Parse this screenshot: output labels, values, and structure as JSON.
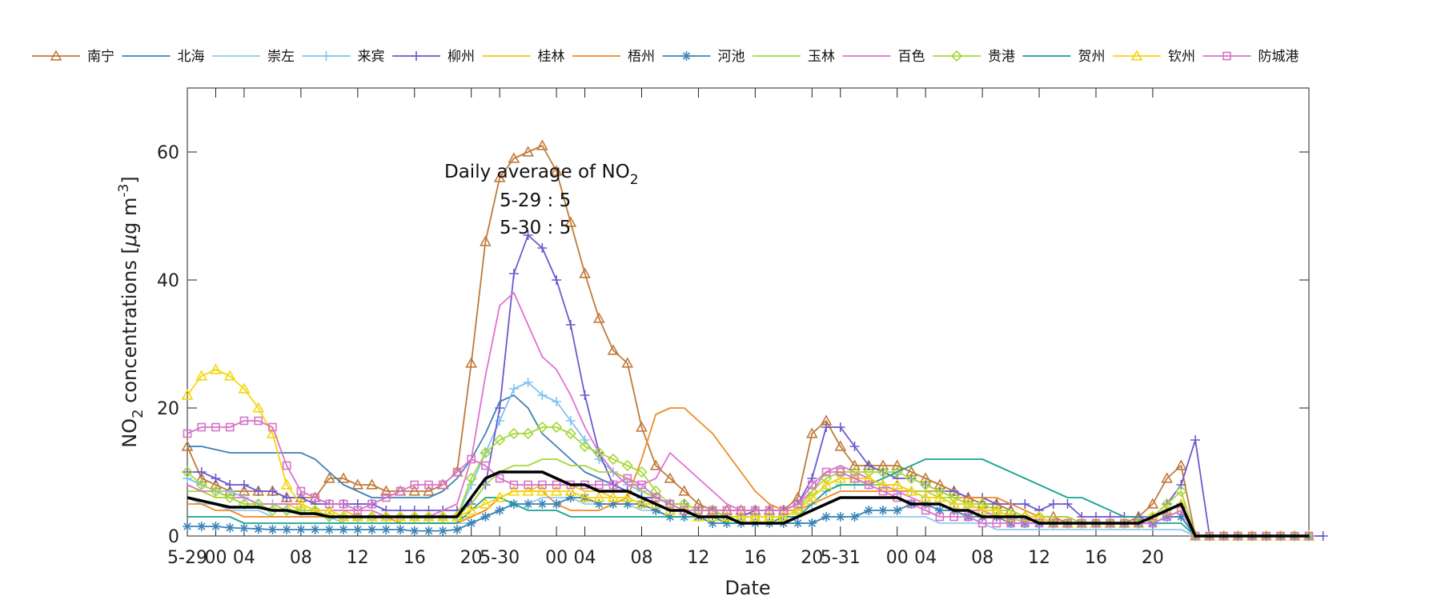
{
  "chart_data": {
    "type": "line",
    "title": "",
    "xlabel": "Date",
    "ylabel_parts": {
      "pre": "NO",
      "sub": "2",
      "mid": " concentrations [",
      "mu": "μ",
      "unit": "g m",
      "sup": "-3",
      "post": "]"
    },
    "ylim": [
      0,
      70
    ],
    "yticks": [
      0,
      20,
      40,
      60
    ],
    "xlim": [
      0,
      79
    ],
    "xticks": [
      {
        "x": 0,
        "label": "5-29"
      },
      {
        "x": 2,
        "label": "00"
      },
      {
        "x": 4,
        "label": "04"
      },
      {
        "x": 8,
        "label": "08"
      },
      {
        "x": 12,
        "label": "12"
      },
      {
        "x": 16,
        "label": "16"
      },
      {
        "x": 20,
        "label": "20"
      },
      {
        "x": 22,
        "label": "5-30"
      },
      {
        "x": 26,
        "label": "00"
      },
      {
        "x": 28,
        "label": "04"
      },
      {
        "x": 32,
        "label": "08"
      },
      {
        "x": 36,
        "label": "12"
      },
      {
        "x": 40,
        "label": "16"
      },
      {
        "x": 44,
        "label": "20"
      },
      {
        "x": 46,
        "label": "5-31"
      },
      {
        "x": 50,
        "label": "00"
      },
      {
        "x": 52,
        "label": "04"
      },
      {
        "x": 56,
        "label": "08"
      },
      {
        "x": 60,
        "label": "12"
      },
      {
        "x": 64,
        "label": "16"
      },
      {
        "x": 68,
        "label": "20"
      }
    ],
    "annotation": {
      "title_pre": "Daily average of NO",
      "title_sub": "2",
      "lines": [
        "5-29 : 5",
        "5-30 : 5"
      ]
    },
    "series": [
      {
        "name": "南宁",
        "color": "#c07a3a",
        "marker": "triangle",
        "values": [
          14,
          9,
          8,
          7,
          7,
          7,
          7,
          6,
          6,
          6,
          9,
          9,
          8,
          8,
          7,
          7,
          7,
          7,
          8,
          10,
          27,
          46,
          56,
          59,
          60,
          61,
          57,
          49,
          41,
          34,
          29,
          27,
          17,
          11,
          9,
          7,
          5,
          4,
          4,
          4,
          4,
          4,
          4,
          6,
          16,
          18,
          14,
          11,
          11,
          11,
          11,
          10,
          9,
          8,
          7,
          6,
          5,
          5,
          4,
          3,
          3,
          3,
          2,
          2,
          2,
          2,
          2,
          3,
          5,
          9,
          11,
          0,
          0,
          0,
          0,
          0,
          0,
          0,
          0,
          0
        ]
      },
      {
        "name": "北海",
        "color": "#3d7fb5",
        "marker": "none",
        "values": [
          14,
          14,
          13.5,
          13,
          13,
          13,
          13,
          13,
          13,
          12,
          10,
          8,
          7,
          6,
          6,
          6,
          6,
          6,
          7,
          9,
          12,
          16,
          21,
          22,
          20,
          16,
          14,
          12,
          10,
          9,
          8,
          7,
          6,
          6,
          5,
          5,
          4,
          4,
          3,
          3,
          3,
          3,
          3,
          4,
          6,
          8,
          9,
          9,
          8,
          8,
          8,
          7,
          6,
          6,
          5,
          5,
          4,
          4,
          3,
          3,
          2,
          2,
          2,
          2,
          2,
          2,
          2,
          2,
          2,
          3,
          3,
          0,
          0,
          0,
          0,
          0,
          0,
          0,
          0,
          0
        ]
      },
      {
        "name": "崇左",
        "color": "#8ecbf0",
        "marker": "none",
        "values": [
          6,
          5,
          5,
          4,
          4,
          4,
          3,
          3,
          3,
          3,
          3,
          2,
          2,
          2,
          2,
          2,
          2,
          2,
          2,
          2,
          2,
          3,
          4,
          5,
          5,
          6,
          6,
          6,
          5,
          5,
          5,
          5,
          4,
          4,
          3,
          3,
          3,
          3,
          2,
          2,
          2,
          2,
          2,
          2,
          2,
          3,
          3,
          3,
          3,
          3,
          3,
          3,
          3,
          2,
          2,
          2,
          2,
          1,
          1,
          1,
          1,
          1,
          1,
          1,
          1,
          1,
          1,
          1,
          1,
          1,
          1,
          0,
          0,
          0,
          0,
          0,
          0,
          0,
          0,
          0
        ]
      },
      {
        "name": "来宾",
        "color": "#7ec3ee",
        "marker": "plus",
        "values": [
          9,
          8,
          7,
          7,
          6,
          5,
          5,
          4,
          4,
          4,
          3,
          3,
          3,
          3,
          3,
          3,
          3,
          3,
          3,
          3,
          8,
          13,
          18,
          23,
          24,
          22,
          21,
          18,
          15,
          12,
          10,
          8,
          7,
          6,
          5,
          5,
          4,
          4,
          3,
          3,
          3,
          3,
          3,
          3,
          5,
          7,
          8,
          8,
          8,
          8,
          7,
          7,
          6,
          6,
          5,
          5,
          4,
          3,
          3,
          2,
          2,
          2,
          2,
          2,
          2,
          2,
          2,
          2,
          3,
          4,
          5,
          0,
          0,
          0,
          0,
          0,
          0,
          0,
          0,
          0
        ]
      },
      {
        "name": "柳州",
        "color": "#6a5acd",
        "marker": "plus",
        "values": [
          10,
          10,
          9,
          8,
          8,
          7,
          7,
          6,
          6,
          5,
          5,
          5,
          5,
          5,
          4,
          4,
          4,
          4,
          4,
          4,
          5,
          8,
          20,
          41,
          47,
          45,
          40,
          33,
          22,
          13,
          8,
          7,
          6,
          6,
          5,
          5,
          4,
          4,
          3,
          3,
          4,
          4,
          4,
          5,
          9,
          17,
          17,
          14,
          11,
          10,
          9,
          9,
          8,
          7,
          7,
          6,
          6,
          5,
          5,
          5,
          4,
          5,
          5,
          3,
          3,
          3,
          3,
          3,
          3,
          5,
          8,
          15,
          0,
          0,
          0,
          0,
          0,
          0,
          0,
          0,
          0
        ]
      },
      {
        "name": "桂林",
        "color": "#f5c518",
        "marker": "none",
        "values": [
          8,
          7,
          6,
          6,
          5,
          5,
          5,
          5,
          4,
          4,
          4,
          4,
          3,
          3,
          3,
          3,
          3,
          3,
          3,
          3,
          3,
          4,
          6,
          7,
          7,
          8,
          8,
          8,
          7,
          7,
          6,
          6,
          5,
          5,
          4,
          4,
          3,
          3,
          3,
          3,
          3,
          3,
          3,
          4,
          6,
          8,
          9,
          9,
          9,
          8,
          8,
          7,
          6,
          6,
          5,
          5,
          4,
          4,
          3,
          3,
          3,
          2,
          2,
          2,
          2,
          2,
          2,
          2,
          3,
          4,
          5,
          0,
          0,
          0,
          0,
          0,
          0,
          0,
          0,
          0
        ]
      },
      {
        "name": "梧州",
        "color": "#f08a24",
        "marker": "none",
        "values": [
          5,
          5,
          4,
          4,
          3,
          3,
          3,
          3,
          3,
          3,
          3,
          3,
          3,
          3,
          3,
          2,
          2,
          2,
          2,
          2,
          3,
          4,
          6,
          7,
          7,
          7,
          5,
          4,
          4,
          4,
          5,
          6,
          12,
          19,
          20,
          20,
          18,
          16,
          13,
          10,
          7,
          5,
          4,
          4,
          5,
          6,
          7,
          7,
          7,
          7,
          7,
          7,
          7,
          7,
          6,
          6,
          6,
          6,
          5,
          4,
          3,
          3,
          3,
          2,
          2,
          2,
          2,
          2,
          3,
          4,
          5,
          0,
          0,
          0,
          0,
          0,
          0,
          0,
          0,
          0
        ]
      },
      {
        "name": "河池",
        "color": "#3c84b8",
        "marker": "star",
        "values": [
          1.5,
          1.5,
          1.5,
          1.3,
          1.2,
          1.1,
          1,
          1,
          1,
          1,
          1,
          1,
          1,
          1,
          1,
          1,
          0.8,
          0.8,
          0.8,
          1,
          2,
          3,
          4,
          5,
          5,
          5,
          5,
          6,
          6,
          5,
          5,
          5,
          5,
          4,
          3,
          3,
          3,
          2,
          2,
          2,
          2,
          2,
          2,
          2,
          2,
          3,
          3,
          3,
          4,
          4,
          4,
          5,
          5,
          4,
          4,
          3,
          3,
          3,
          2,
          2,
          2,
          2,
          2,
          2,
          2,
          2,
          2,
          2,
          2,
          3,
          3,
          0,
          0,
          0,
          0,
          0,
          0,
          0,
          0,
          0
        ]
      },
      {
        "name": "玉林",
        "color": "#a6d83a",
        "marker": "none",
        "values": [
          7,
          7,
          6,
          6,
          5,
          5,
          5,
          4,
          4,
          4,
          3,
          3,
          3,
          3,
          3,
          3,
          3,
          3,
          3,
          3,
          5,
          8,
          10,
          11,
          11,
          12,
          12,
          11,
          11,
          10,
          10,
          9,
          7,
          6,
          5,
          5,
          4,
          4,
          3,
          3,
          3,
          3,
          3,
          3,
          5,
          7,
          8,
          8,
          8,
          8,
          8,
          7,
          7,
          6,
          6,
          5,
          5,
          4,
          4,
          3,
          3,
          3,
          3,
          2,
          2,
          2,
          2,
          2,
          3,
          4,
          5,
          0,
          0,
          0,
          0,
          0,
          0,
          0,
          0,
          0
        ]
      },
      {
        "name": "百色",
        "color": "#e070d0",
        "marker": "none",
        "values": [
          8,
          7,
          7,
          6,
          6,
          5,
          5,
          5,
          5,
          4,
          4,
          4,
          4,
          4,
          3,
          3,
          3,
          3,
          4,
          5,
          12,
          25,
          36,
          38,
          33,
          28,
          26,
          22,
          17,
          13,
          10,
          8,
          8,
          9,
          13,
          11,
          9,
          7,
          5,
          4,
          4,
          4,
          4,
          5,
          7,
          10,
          11,
          10,
          9,
          8,
          7,
          6,
          5,
          5,
          4,
          4,
          4,
          3,
          3,
          3,
          3,
          2,
          2,
          2,
          2,
          2,
          2,
          2,
          3,
          4,
          5,
          0,
          0,
          0,
          0,
          0,
          0,
          0,
          0,
          0
        ]
      },
      {
        "name": "贵港",
        "color": "#a6d83a",
        "marker": "diamond",
        "values": [
          10,
          8,
          7,
          6,
          5,
          5,
          4,
          4,
          4,
          4,
          3,
          3,
          3,
          3,
          3,
          3,
          3,
          3,
          3,
          3,
          9,
          13,
          15,
          16,
          16,
          17,
          17,
          16,
          14,
          13,
          12,
          11,
          10,
          7,
          5,
          5,
          4,
          4,
          3,
          3,
          3,
          3,
          3,
          4,
          7,
          9,
          10,
          10,
          10,
          10,
          10,
          9,
          8,
          7,
          6,
          5,
          5,
          4,
          3,
          3,
          3,
          2,
          2,
          2,
          2,
          2,
          2,
          2,
          3,
          5,
          7,
          0,
          0,
          0,
          0,
          0,
          0,
          0,
          0,
          0
        ]
      },
      {
        "name": "贺州",
        "color": "#19a391",
        "marker": "none",
        "values": [
          3,
          3,
          3,
          3,
          2,
          2,
          2,
          2,
          2,
          2,
          2,
          2,
          2,
          2,
          2,
          2,
          2,
          2,
          2,
          2,
          4,
          6,
          6,
          5,
          4,
          4,
          4,
          3,
          3,
          3,
          3,
          3,
          3,
          3,
          3,
          3,
          3,
          3,
          2,
          2,
          2,
          2,
          3,
          3,
          5,
          7,
          8,
          8,
          8,
          9,
          10,
          11,
          12,
          12,
          12,
          12,
          12,
          11,
          10,
          9,
          8,
          7,
          6,
          6,
          5,
          4,
          3,
          3,
          2,
          2,
          2,
          0,
          0,
          0,
          0,
          0,
          0,
          0,
          0,
          0
        ]
      },
      {
        "name": "钦州",
        "color": "#f5d60a",
        "marker": "triangle",
        "values": [
          22,
          25,
          26,
          25,
          23,
          20,
          16,
          8,
          5,
          4,
          4,
          3,
          3,
          3,
          3,
          3,
          3,
          3,
          3,
          3,
          4,
          5,
          6,
          7,
          7,
          7,
          7,
          7,
          6,
          6,
          6,
          6,
          5,
          5,
          4,
          4,
          3,
          3,
          3,
          3,
          3,
          3,
          3,
          4,
          6,
          8,
          9,
          9,
          9,
          8,
          8,
          7,
          6,
          6,
          5,
          5,
          4,
          4,
          3,
          3,
          3,
          2,
          2,
          2,
          2,
          2,
          2,
          2,
          3,
          4,
          5,
          0,
          0,
          0,
          0,
          0,
          0,
          0,
          0,
          0
        ]
      },
      {
        "name": "防城港",
        "color": "#d673c8",
        "marker": "square",
        "values": [
          16,
          17,
          17,
          17,
          18,
          18,
          17,
          11,
          7,
          6,
          5,
          5,
          4,
          5,
          6,
          7,
          8,
          8,
          8,
          10,
          12,
          11,
          9,
          8,
          8,
          8,
          8,
          8,
          8,
          8,
          8,
          9,
          8,
          6,
          5,
          4,
          4,
          4,
          4,
          4,
          4,
          4,
          4,
          5,
          8,
          10,
          10,
          9,
          8,
          7,
          6,
          5,
          4,
          3,
          3,
          3,
          2,
          2,
          2,
          2,
          2,
          2,
          2,
          2,
          2,
          2,
          2,
          2,
          2,
          3,
          4,
          0,
          0,
          0,
          0,
          0,
          0,
          0,
          0,
          0
        ]
      },
      {
        "name": "average",
        "color": "#000000",
        "marker": "none",
        "legend": false,
        "values": [
          6,
          5.5,
          5,
          4.5,
          4.5,
          4.5,
          4,
          4,
          3.5,
          3.5,
          3,
          3,
          3,
          3,
          3,
          3,
          3,
          3,
          3,
          3,
          6,
          9,
          10,
          10,
          10,
          10,
          9,
          8,
          8,
          7,
          7,
          7,
          6,
          5,
          4,
          4,
          3,
          3,
          3,
          2,
          2,
          2,
          2,
          3,
          4,
          5,
          6,
          6,
          6,
          6,
          6,
          5,
          5,
          5,
          4,
          4,
          3,
          3,
          3,
          3,
          2,
          2,
          2,
          2,
          2,
          2,
          2,
          2,
          3,
          4,
          5,
          0,
          0,
          0,
          0,
          0,
          0,
          0,
          0,
          0
        ]
      }
    ]
  }
}
